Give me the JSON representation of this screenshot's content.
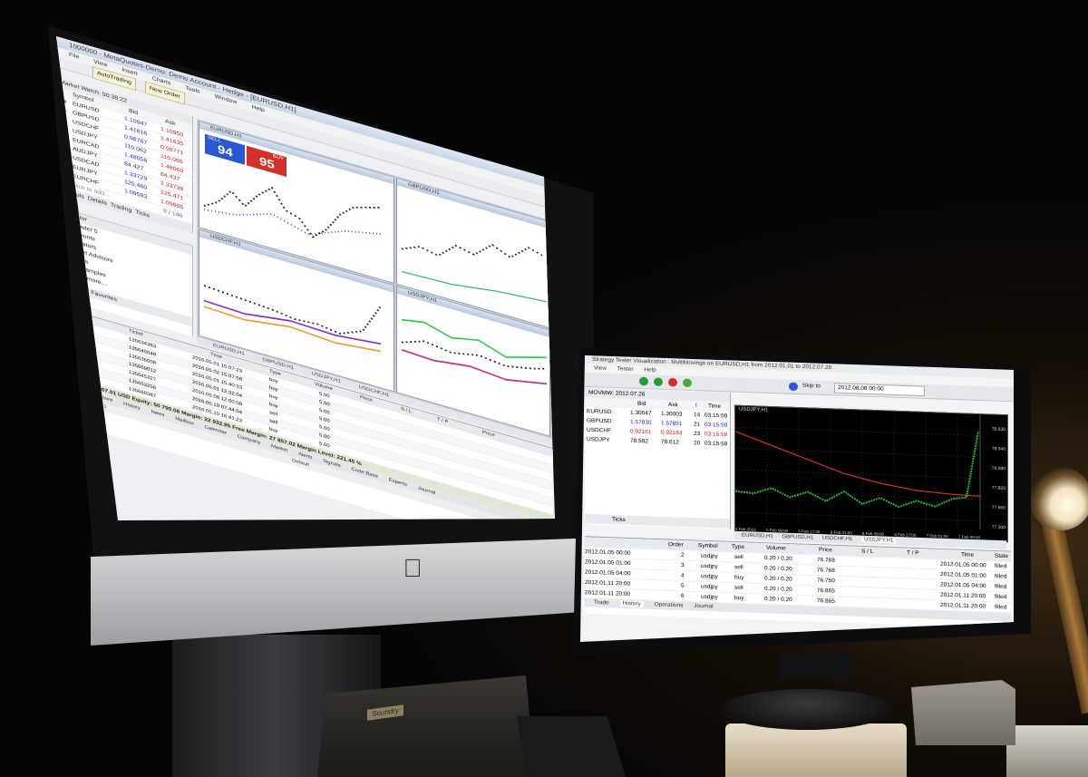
{
  "colors": {
    "accent_blue": "#1a1ad0",
    "accent_red": "#d01a1a",
    "chart_green": "#20c020",
    "chart_red": "#e03030"
  },
  "imac": {
    "title": "1000000 - MetaQuotes-Demo: Demo Account - Hedge - [EURUSD,H1]",
    "menu": [
      "File",
      "View",
      "Insert",
      "Charts",
      "Tools",
      "Window",
      "Help"
    ],
    "toolbar": {
      "autotrading": "AutoTrading",
      "new_order": "New Order"
    },
    "market_watch": {
      "header": "Market Watch: 00:38:22",
      "cols": {
        "symbol": "Symbol",
        "bid": "Bid",
        "ask": "Ask"
      },
      "rows": [
        {
          "symbol": "EURUSD",
          "bid": "1.10947",
          "ask": "1.10950"
        },
        {
          "symbol": "GBPUSD",
          "bid": "1.41616",
          "ask": "1.41635"
        },
        {
          "symbol": "USDCHF",
          "bid": "0.98767",
          "ask": "0.98771"
        },
        {
          "symbol": "USDJPY",
          "bid": "110.062",
          "ask": "110.065"
        },
        {
          "symbol": "EURCAD",
          "bid": "1.48056",
          "ask": "1.48069"
        },
        {
          "symbol": "AUDJPY",
          "bid": "84.427",
          "ask": "84.437"
        },
        {
          "symbol": "USDCAD",
          "bid": "1.33729",
          "ask": "1.33739"
        },
        {
          "symbol": "EURJPY",
          "bid": "125.460",
          "ask": "125.471"
        },
        {
          "symbol": "EURCHF",
          "bid": "1.09593",
          "ask": "1.09605"
        }
      ],
      "add_row": "click to add...",
      "count": "9 / 146",
      "tabs": [
        "Symbols",
        "Details",
        "Trading",
        "Ticks"
      ]
    },
    "navigator": {
      "header": "Navigator",
      "items": [
        "MetaTrader 5",
        "Accounts",
        "Indicators",
        "Expert Advisors",
        "Scripts",
        "Examples",
        "93 more..."
      ],
      "tabs": [
        "Common",
        "Favorites"
      ]
    },
    "charts": [
      {
        "title": "EURUSD,H1",
        "sell_price": "94",
        "buy_price": "95",
        "sell_label": "SELL",
        "buy_label": "BUY"
      },
      {
        "title": "GBPUSD,H1"
      },
      {
        "title": "USDCHF,H1"
      },
      {
        "title": "USDJPY,H1"
      }
    ],
    "chart_tabs": [
      "EURUSD,H1",
      "GBPUSD,H1",
      "USDJPY,H1",
      "USDCHF,H1"
    ],
    "toolbox": {
      "cols": [
        "Symbol",
        "Ticket",
        "Time",
        "Type",
        "Volume",
        "Price",
        "S / L",
        "T / P",
        "Price"
      ],
      "rows": [
        {
          "symbol": "eurusd",
          "ticket": "135634383",
          "time": "2016.05.01 15:07:23",
          "type": "buy",
          "volume": "5.00"
        },
        {
          "symbol": "eurusd",
          "ticket": "135645048",
          "time": "2016.05.02 15:07:58",
          "type": "buy",
          "volume": "5.00"
        },
        {
          "symbol": "eurusd",
          "ticket": "135636008",
          "time": "2016.05.01 15:40:33",
          "type": "buy",
          "volume": "5.00"
        },
        {
          "symbol": "eurusd",
          "ticket": "135669012",
          "time": "2016.05.01 12:32:04",
          "type": "buy",
          "volume": "5.00"
        },
        {
          "symbol": "eurusd",
          "ticket": "135645327",
          "time": "2016.05.08 12:00:08",
          "type": "sell",
          "volume": "5.00"
        },
        {
          "symbol": "eurusd",
          "ticket": "135653256",
          "time": "2016.05.10 07:44:04",
          "type": "sell",
          "volume": "5.00"
        },
        {
          "symbol": "eurusd",
          "ticket": "135669387",
          "time": "2016.05.10 16:41:23",
          "type": "buy",
          "volume": "5.00"
        }
      ],
      "balance": "Balance: 7 907.01 USD  Equity: 50 790.08  Margin: 22 932.95  Free Margin: 27 857.02  Margin Level: 221.45 %",
      "tabs": [
        "Trade",
        "Exposure",
        "History",
        "News",
        "Mailbox",
        "Calendar",
        "Company",
        "Market",
        "Alerts",
        "Signals",
        "Code Base",
        "Experts",
        "Journal"
      ]
    },
    "status_left": "For Help, press F1",
    "status_mid": "Default"
  },
  "tester": {
    "title": "Strategy Tester Visualization : MultiMovings on EURUSD,H1 from 2012.01.01 to 2012.07.26",
    "menu": [
      "View",
      "Tester",
      "Help"
    ],
    "skip_label": "Skip to",
    "skip_value": "2012.08.08 00:00",
    "mw_header": "MOVMW: 2012.07.26",
    "mw_cols": {
      "bid": "Bid",
      "ask": "Ask",
      "spread": "!",
      "time": "Time"
    },
    "mw_rows": [
      {
        "symbol": "EURUSD",
        "bid": "1.30047",
        "ask": "1.30003",
        "spread": "14",
        "time": "03:15:59"
      },
      {
        "symbol": "GBPUSD",
        "bid": "1.57830",
        "ask": "1.57851",
        "spread": "21",
        "time": "03:15:59"
      },
      {
        "symbol": "USDCHF",
        "bid": "0.92161",
        "ask": "0.92184",
        "spread": "23",
        "time": "03:15:59"
      },
      {
        "symbol": "USDJPY",
        "bid": "78.592",
        "ask": "78.612",
        "spread": "20",
        "time": "03:15:59"
      }
    ],
    "mw_tab": "Ticks",
    "chart_header": "USDJPY,H1",
    "chart_tabs": [
      "EURUSD,H1",
      "GBPUSD,H1",
      "USDCHF,H1",
      "USDJPY,H1"
    ],
    "y_labels": [
      "78.630",
      "78.340",
      "78.080",
      "77.820",
      "77.560",
      "77.300"
    ],
    "x_labels": [
      "4 Feb 2012",
      "5 Feb 09:00",
      "5 Feb 17:00",
      "6 Feb 01:00",
      "6 Feb 09:00",
      "6 Feb 17:00",
      "7 Feb 01:00",
      "7 Feb 09:00"
    ],
    "term_cols": [
      "Order",
      "Symbol",
      "Type",
      "Volume",
      "Price",
      "S / L",
      "T / P",
      "Time",
      "State"
    ],
    "term_rows": [
      {
        "time0": "2012.01.05 00:00",
        "order": "2",
        "symbol": "usdjpy",
        "type": "sell",
        "volume": "0.20 / 0.20",
        "price": "76.768",
        "time": "2012.01.05 00:00",
        "state": "filled"
      },
      {
        "time0": "2012.01.05 01:00",
        "order": "3",
        "symbol": "usdjpy",
        "type": "sell",
        "volume": "0.20 / 0.20",
        "price": "76.768",
        "time": "2012.01.05 01:00",
        "state": "filled"
      },
      {
        "time0": "2012.01.05 04:00",
        "order": "4",
        "symbol": "usdjpy",
        "type": "buy",
        "volume": "0.20 / 0.20",
        "price": "76.750",
        "time": "2012.01.05 04:00",
        "state": "filled"
      },
      {
        "time0": "2012.01.11 20:00",
        "order": "5",
        "symbol": "usdjpy",
        "type": "sell",
        "volume": "0.20 / 0.20",
        "price": "76.865",
        "time": "2012.01.11 20:00",
        "state": "filled"
      },
      {
        "time0": "2012.01.11 20:00",
        "order": "6",
        "symbol": "usdjpy",
        "type": "buy",
        "volume": "0.20 / 0.20",
        "price": "76.865",
        "time": "2012.01.11 20:00",
        "state": "filled"
      }
    ],
    "term_tabs": [
      "Trade",
      "History",
      "Operations",
      "Journal"
    ]
  },
  "desk": {
    "book_label": "Soundry"
  }
}
